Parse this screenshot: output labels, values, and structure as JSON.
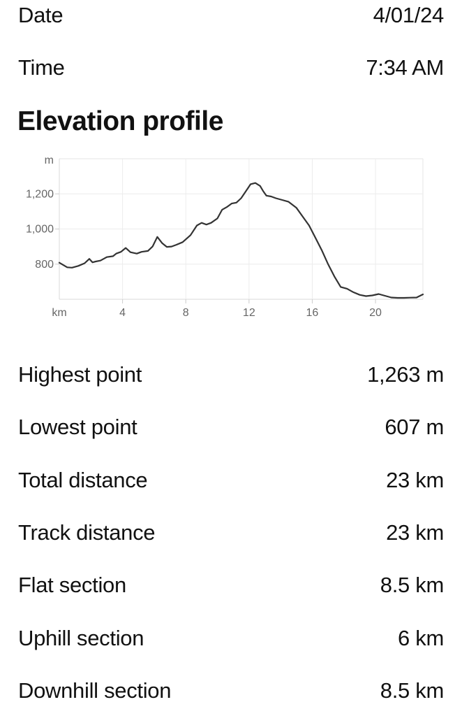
{
  "header": {
    "date_label": "Date",
    "date_value": "4/01/24",
    "time_label": "Time",
    "time_value": "7:34 AM"
  },
  "section_title": "Elevation profile",
  "chart_data": {
    "type": "line",
    "title": "",
    "xlabel": "km",
    "ylabel": "m",
    "xlim": [
      0,
      23
    ],
    "ylim": [
      600,
      1400
    ],
    "x_ticks": [
      {
        "value": 4,
        "label": "4"
      },
      {
        "value": 8,
        "label": "8"
      },
      {
        "value": 12,
        "label": "12"
      },
      {
        "value": 16,
        "label": "16"
      },
      {
        "value": 20,
        "label": "20"
      }
    ],
    "y_ticks": [
      {
        "value": 800,
        "label": "800"
      },
      {
        "value": 1000,
        "label": "1,000"
      },
      {
        "value": 1200,
        "label": "1,200"
      }
    ],
    "grid": true,
    "line_color": "#333333",
    "series": [
      {
        "x": [
          0,
          0.5,
          0.8,
          1.2,
          1.6,
          1.9,
          2.1,
          2.3,
          2.6,
          3.0,
          3.4,
          3.6,
          3.9,
          4.2,
          4.5,
          4.9,
          5.2,
          5.6,
          5.9,
          6.2,
          6.5,
          6.8,
          7.1,
          7.4,
          7.8,
          8.3,
          8.7,
          9.0,
          9.3,
          9.6,
          10.0,
          10.3,
          10.6,
          10.9,
          11.2,
          11.5,
          11.8,
          12.1,
          12.4,
          12.7,
          12.9,
          13.1,
          13.4,
          13.7,
          14.1,
          14.5,
          15.0,
          15.4,
          15.8,
          16.2,
          16.6,
          17.0,
          17.4,
          17.8,
          18.2,
          18.6,
          19.0,
          19.4,
          19.8,
          20.2,
          20.6,
          21.0,
          21.4,
          21.8,
          22.2,
          22.6,
          23.0
        ],
        "values": [
          808,
          782,
          780,
          790,
          805,
          830,
          810,
          815,
          820,
          840,
          845,
          860,
          870,
          892,
          868,
          860,
          870,
          875,
          900,
          955,
          920,
          898,
          900,
          910,
          925,
          965,
          1020,
          1035,
          1025,
          1035,
          1060,
          1110,
          1125,
          1145,
          1150,
          1175,
          1215,
          1255,
          1262,
          1245,
          1215,
          1190,
          1185,
          1175,
          1165,
          1155,
          1120,
          1070,
          1020,
          950,
          880,
          800,
          730,
          670,
          660,
          640,
          625,
          618,
          622,
          630,
          620,
          610,
          608,
          608,
          609,
          610,
          628
        ]
      }
    ]
  },
  "stats": [
    {
      "label": "Highest point",
      "value": "1,263 m"
    },
    {
      "label": "Lowest point",
      "value": "607 m"
    },
    {
      "label": "Total distance",
      "value": "23 km"
    },
    {
      "label": "Track distance",
      "value": "23 km"
    },
    {
      "label": "Flat section",
      "value": "8.5 km"
    },
    {
      "label": "Uphill section",
      "value": "6 km"
    },
    {
      "label": "Downhill section",
      "value": "8.5 km"
    }
  ]
}
